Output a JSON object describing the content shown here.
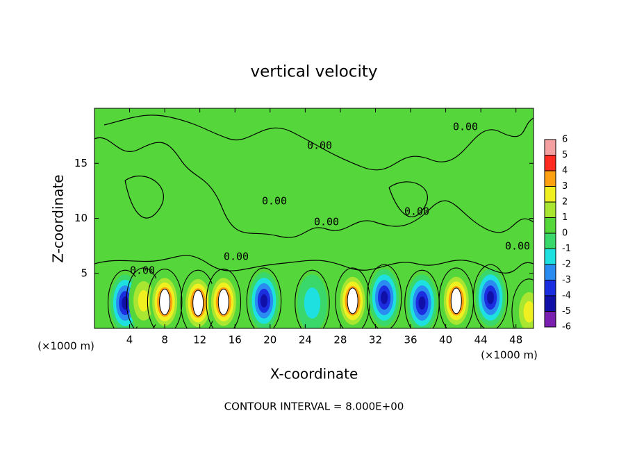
{
  "chart_data": {
    "type": "contour",
    "title": "vertical velocity",
    "x_label": "X-coordinate",
    "y_label": "Z-coordinate",
    "x_unit": "(×1000 m)",
    "footer": "CONTOUR INTERVAL = 8.000E+00",
    "contour_label": "0.00",
    "xlim": [
      0,
      50
    ],
    "ylim": [
      0,
      20
    ],
    "xticks": [
      4,
      8,
      12,
      16,
      20,
      24,
      28,
      32,
      36,
      40,
      44,
      48
    ],
    "yticks": [
      5,
      10,
      15
    ],
    "background_color": "#55d63a",
    "colorbar_ticks": [
      -6,
      -5,
      -4,
      -3,
      -2,
      -1,
      0,
      1,
      2,
      3,
      4,
      5,
      6
    ],
    "colorbar_colors": [
      "#7a1fb0",
      "#1010a8",
      "#1a2ee0",
      "#2a8cf0",
      "#1ee0e0",
      "#3ad86a",
      "#55d63a",
      "#a8e632",
      "#f0f020",
      "#ffa010",
      "#ff2a20",
      "#f4a0a0"
    ],
    "cells": [
      {
        "x": 3.5,
        "z": 2.3,
        "w": -5
      },
      {
        "x": 5.6,
        "z": 2.5,
        "w": 3
      },
      {
        "x": 8.0,
        "z": 2.4,
        "w": 6
      },
      {
        "x": 11.8,
        "z": 2.3,
        "w": 6
      },
      {
        "x": 14.7,
        "z": 2.4,
        "w": 6
      },
      {
        "x": 19.3,
        "z": 2.5,
        "w": -5
      },
      {
        "x": 24.8,
        "z": 2.3,
        "w": -2
      },
      {
        "x": 29.4,
        "z": 2.5,
        "w": 6
      },
      {
        "x": 33.0,
        "z": 2.8,
        "w": -5
      },
      {
        "x": 37.3,
        "z": 2.3,
        "w": -5
      },
      {
        "x": 41.2,
        "z": 2.5,
        "w": 6
      },
      {
        "x": 45.1,
        "z": 2.8,
        "w": -5
      },
      {
        "x": 49.5,
        "z": 1.5,
        "w": 3
      }
    ]
  }
}
